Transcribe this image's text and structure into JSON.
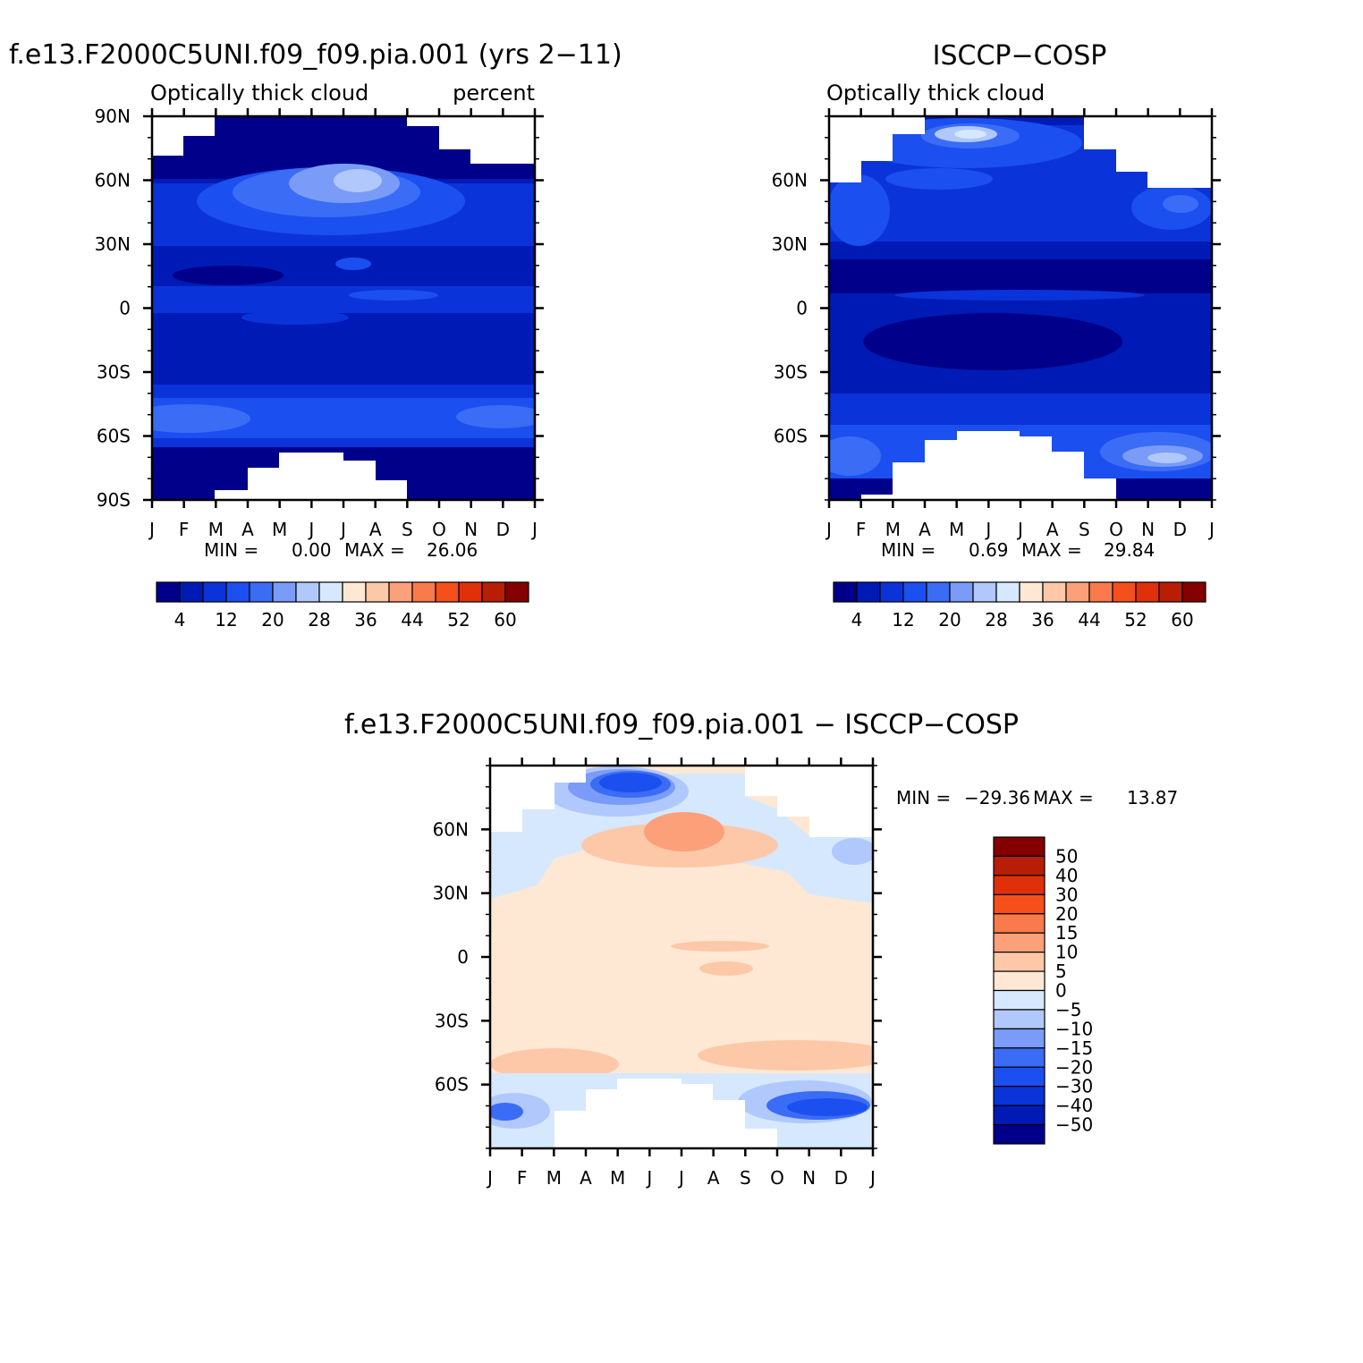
{
  "chart_data": [
    {
      "type": "heatmap",
      "title": "f.e13.F2000C5UNI.f09_f09.pia.001 (yrs 2−11)",
      "subtitle_left": "Optically thick cloud",
      "subtitle_right": "percent",
      "x_tick_labels": [
        "J",
        "F",
        "M",
        "A",
        "M",
        "J",
        "J",
        "A",
        "S",
        "O",
        "N",
        "D",
        "J"
      ],
      "y_tick_labels": [
        "90N",
        "60N",
        "30N",
        "0",
        "30S",
        "60S",
        "90S"
      ],
      "ylim": [
        -90,
        90
      ],
      "stats": {
        "min_label": "MIN =",
        "min": "0.00",
        "max_label": "MAX =",
        "max": "26.06"
      },
      "colorbar": {
        "labels": [
          "4",
          "12",
          "20",
          "28",
          "36",
          "44",
          "52",
          "60"
        ]
      }
    },
    {
      "type": "heatmap",
      "title": "ISCCP−COSP",
      "subtitle_left": "Optically thick cloud",
      "x_tick_labels": [
        "J",
        "F",
        "M",
        "A",
        "M",
        "J",
        "J",
        "A",
        "S",
        "O",
        "N",
        "D",
        "J"
      ],
      "y_tick_labels": [
        "60N",
        "30N",
        "0",
        "30S",
        "60S"
      ],
      "stats": {
        "min_label": "MIN =",
        "min": "0.69",
        "max_label": "MAX =",
        "max": "29.84"
      },
      "colorbar": {
        "labels": [
          "4",
          "12",
          "20",
          "28",
          "36",
          "44",
          "52",
          "60"
        ]
      }
    },
    {
      "type": "heatmap",
      "title": "f.e13.F2000C5UNI.f09_f09.pia.001 − ISCCP−COSP",
      "x_tick_labels": [
        "J",
        "F",
        "M",
        "A",
        "M",
        "J",
        "J",
        "A",
        "S",
        "O",
        "N",
        "D",
        "J"
      ],
      "y_tick_labels": [
        "60N",
        "30N",
        "0",
        "30S",
        "60S"
      ],
      "stats": {
        "min_label": "MIN =",
        "min": "−29.36",
        "max_label": "MAX =",
        "max": "13.87"
      },
      "colorbar": {
        "labels": [
          "50",
          "40",
          "30",
          "20",
          "15",
          "10",
          "5",
          "0",
          "−5",
          "−10",
          "−15",
          "−20",
          "−30",
          "−40",
          "−50"
        ]
      }
    }
  ],
  "palettes": {
    "sequential": [
      "#00008a",
      "#001bb5",
      "#0a34d9",
      "#1b4ff0",
      "#3a6cf5",
      "#7a9cf8",
      "#b0c8fb",
      "#d6e8fd",
      "#fee8d4",
      "#fdc8a8",
      "#fca07a",
      "#f97a4a",
      "#f54f1c",
      "#e0300a",
      "#b81d05",
      "#840000"
    ],
    "diverging": [
      "#840000",
      "#b81d05",
      "#e0300a",
      "#f54f1c",
      "#f97a4a",
      "#fca07a",
      "#fdc8a8",
      "#fee8d4",
      "#d6e8fd",
      "#b0c8fb",
      "#7a9cf8",
      "#3a6cf5",
      "#1b4ff0",
      "#0a34d9",
      "#001bb5",
      "#00008a"
    ]
  }
}
